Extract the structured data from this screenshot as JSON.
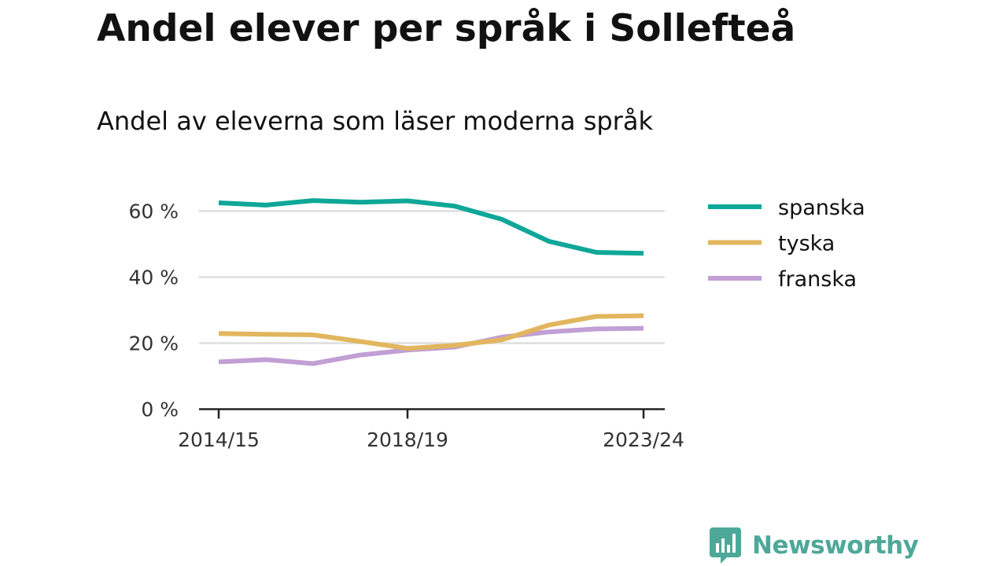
{
  "title": "Andel elever per språk i Sollefteå",
  "subtitle": "Andel av eleverna som läser moderna språk",
  "chart_data": {
    "type": "line",
    "title": "Andel elever per språk i Sollefteå",
    "subtitle": "Andel av eleverna som läser moderna språk",
    "xlabel": "",
    "ylabel": "",
    "x": [
      "2014/15",
      "2015/16",
      "2016/17",
      "2017/18",
      "2018/19",
      "2019/20",
      "2020/21",
      "2021/22",
      "2022/23",
      "2023/24"
    ],
    "x_tick_labels": [
      "2014/15",
      "2018/19",
      "2023/24"
    ],
    "y_ticks": [
      0,
      20,
      40,
      60
    ],
    "y_tick_labels": [
      "0 %",
      "20 %",
      "40 %",
      "60 %"
    ],
    "ylim": [
      0,
      65
    ],
    "grid": "horizontal",
    "legend_position": "right",
    "series": [
      {
        "name": "spanska",
        "color": "#0ea798",
        "values": [
          62.5,
          61.8,
          63.2,
          62.7,
          63.1,
          61.5,
          57.5,
          50.8,
          47.5,
          47.2
        ]
      },
      {
        "name": "tyska",
        "color": "#e2b65e",
        "values": [
          22.9,
          22.7,
          22.5,
          20.5,
          18.4,
          19.3,
          21.0,
          25.5,
          28.1,
          28.3
        ]
      },
      {
        "name": "franska",
        "color": "#c19fd4",
        "values": [
          14.3,
          15.0,
          13.8,
          16.4,
          17.9,
          18.8,
          21.8,
          23.4,
          24.3,
          24.5
        ]
      }
    ]
  },
  "logo": {
    "text": "Newsworthy",
    "color": "#4ea898"
  }
}
